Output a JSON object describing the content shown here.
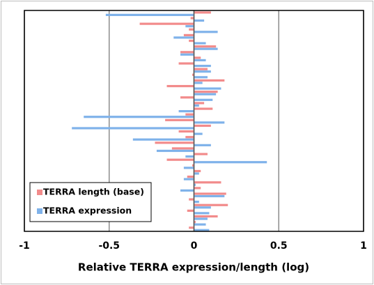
{
  "chart_data": {
    "type": "hbar",
    "xlabel": "Relative TERRA expression/length (log)",
    "categories": [
      null,
      null,
      null,
      null,
      null,
      null,
      null,
      null,
      null,
      null,
      null,
      null,
      null,
      null,
      null,
      null,
      null,
      null,
      null,
      null,
      null,
      null,
      null,
      null,
      null,
      null,
      null,
      null,
      null,
      null,
      null,
      null,
      null,
      null,
      null,
      null,
      null,
      null,
      null
    ],
    "series": [
      {
        "name": "TERRA length (base)",
        "color": "#f28b8b",
        "values": [
          0.1,
          -0.02,
          -0.32,
          -0.03,
          -0.06,
          -0.03,
          0.13,
          -0.08,
          0.04,
          -0.09,
          0.08,
          -0.01,
          0.18,
          -0.16,
          0.14,
          -0.08,
          0.06,
          0.11,
          -0.05,
          -0.17,
          0.1,
          -0.09,
          -0.05,
          -0.23,
          -0.13,
          0.08,
          -0.16,
          -0.01,
          0.04,
          -0.04,
          0.16,
          0.04,
          0.19,
          -0.03,
          0.2,
          -0.04,
          0.14,
          0.01,
          -0.03
        ]
      },
      {
        "name": "TERRA expression",
        "color": "#7fb2ea",
        "values": [
          -0.52,
          0.06,
          -0.05,
          0.14,
          -0.12,
          0.07,
          0.14,
          -0.08,
          0.07,
          0.1,
          0.1,
          0.08,
          0.05,
          0.16,
          0.13,
          0.11,
          0.03,
          -0.09,
          -0.65,
          0.18,
          -0.72,
          0.05,
          -0.36,
          0.1,
          -0.22,
          -0.05,
          0.43,
          -0.06,
          0.03,
          -0.06,
          0.01,
          -0.08,
          0.18,
          0.03,
          0.1,
          0.09,
          0.08,
          0.07,
          0.09
        ]
      }
    ],
    "xlim": [
      -1,
      1
    ],
    "xticks": [
      -1,
      -0.5,
      0,
      0.5,
      1
    ],
    "grid": true,
    "legend": "lower left"
  }
}
